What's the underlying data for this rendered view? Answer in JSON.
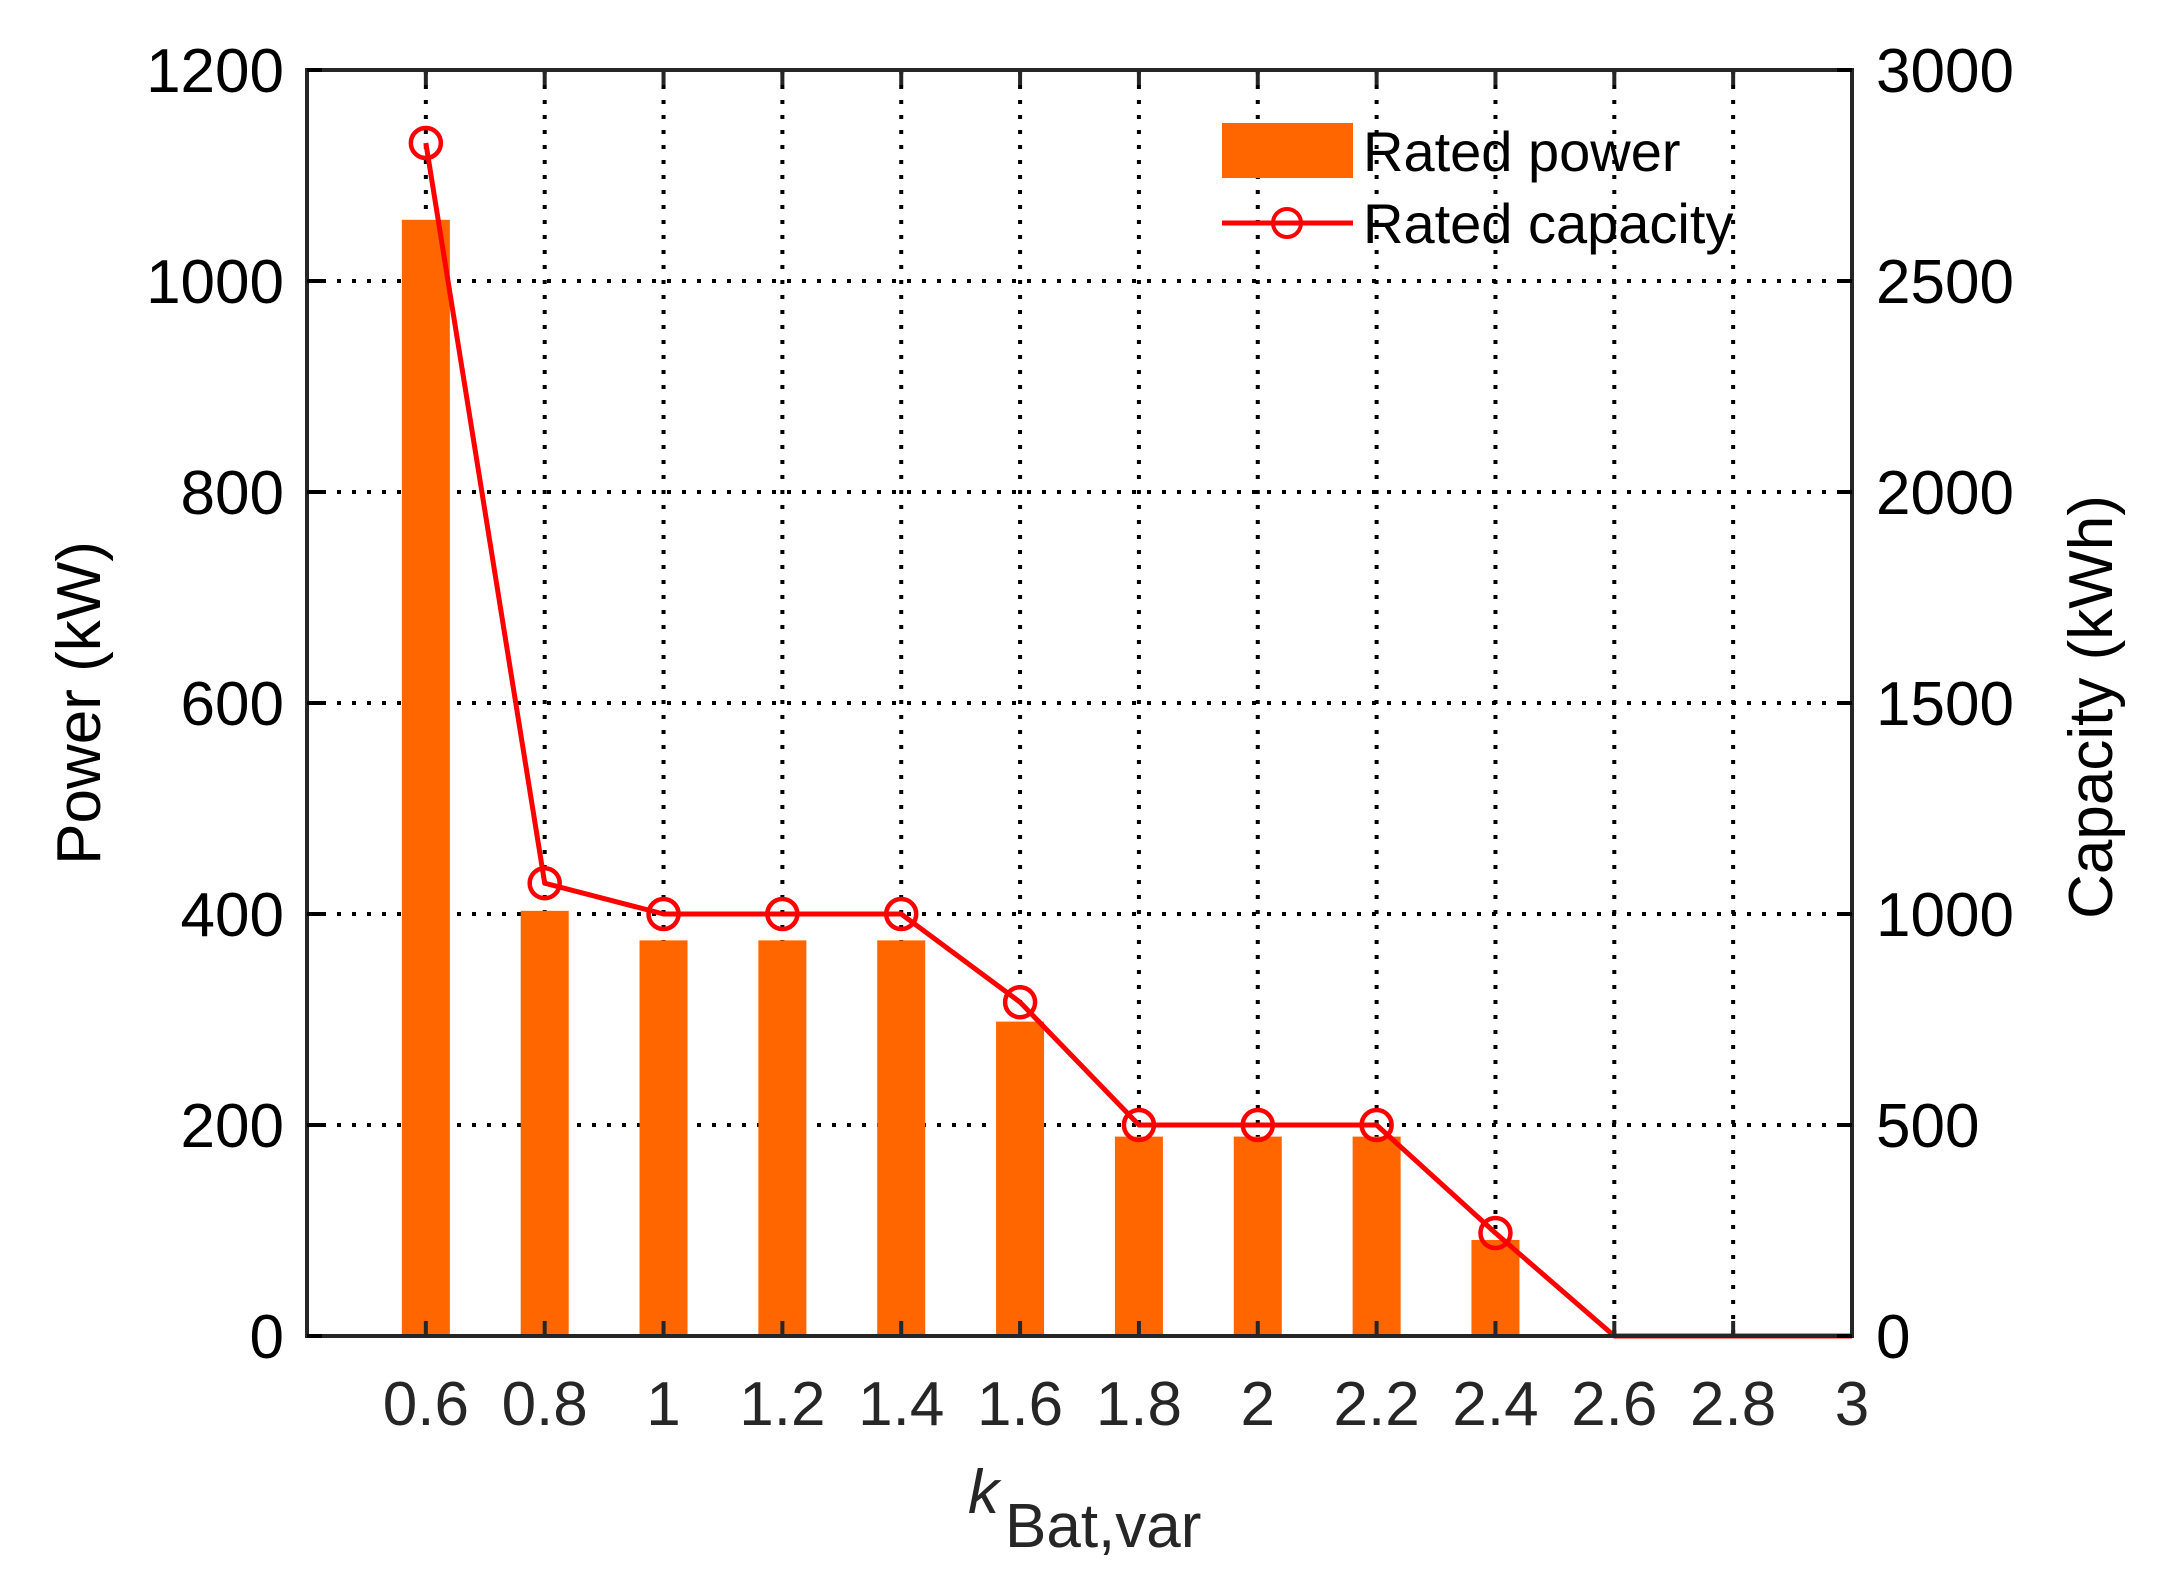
{
  "chart_data": {
    "type": "bar",
    "title": "",
    "xlabel": "k_Bat,var",
    "xlabel_main": "k",
    "xlabel_sub": "Bat,var",
    "ylabel": "Power (kW)",
    "y2label": "Capacity (kWh)",
    "categories": [
      "0.6",
      "0.8",
      "1",
      "1.2",
      "1.4",
      "1.6",
      "1.8",
      "2",
      "2.2",
      "2.4",
      "2.6",
      "2.8",
      "3"
    ],
    "x": [
      0.6,
      0.8,
      1.0,
      1.2,
      1.4,
      1.6,
      1.8,
      2.0,
      2.2,
      2.4,
      2.6,
      2.8,
      3.0
    ],
    "xlim": [
      0.4,
      3.0
    ],
    "ylim": [
      0,
      1200
    ],
    "y2lim": [
      0,
      3000
    ],
    "yticks": [
      0,
      200,
      400,
      600,
      800,
      1000,
      1200
    ],
    "y2ticks": [
      0,
      500,
      1000,
      1500,
      2000,
      2500,
      3000
    ],
    "grid": true,
    "legend_position": "upper right",
    "series": [
      {
        "name": "Rated power",
        "type": "bar",
        "axis": "left",
        "color": "#ff6600",
        "values": [
          1058,
          403,
          375,
          375,
          375,
          298,
          189,
          189,
          189,
          91,
          0,
          0,
          0
        ]
      },
      {
        "name": "Rated capacity",
        "type": "line",
        "marker": "circle-open",
        "axis": "right",
        "color": "#ff0000",
        "values": [
          2827,
          1073,
          1000,
          1000,
          1000,
          791,
          500,
          500,
          500,
          244,
          0,
          0,
          0
        ]
      }
    ]
  },
  "legend": {
    "items": [
      {
        "label": "Rated power",
        "icon": "bar-swatch"
      },
      {
        "label": "Rated capacity",
        "icon": "line-circle-marker"
      }
    ]
  },
  "colors": {
    "bar": "#ff6600",
    "line": "#ff0000",
    "axis": "#262626",
    "grid": "#000000"
  }
}
